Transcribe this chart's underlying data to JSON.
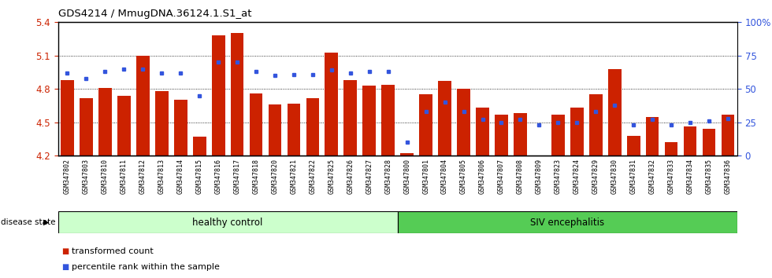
{
  "title": "GDS4214 / MmugDNA.36124.1.S1_at",
  "samples": [
    "GSM347802",
    "GSM347803",
    "GSM347810",
    "GSM347811",
    "GSM347812",
    "GSM347813",
    "GSM347814",
    "GSM347815",
    "GSM347816",
    "GSM347817",
    "GSM347818",
    "GSM347820",
    "GSM347821",
    "GSM347822",
    "GSM347825",
    "GSM347826",
    "GSM347827",
    "GSM347828",
    "GSM347800",
    "GSM347801",
    "GSM347804",
    "GSM347805",
    "GSM347806",
    "GSM347807",
    "GSM347808",
    "GSM347809",
    "GSM347823",
    "GSM347824",
    "GSM347829",
    "GSM347830",
    "GSM347831",
    "GSM347832",
    "GSM347833",
    "GSM347834",
    "GSM347835",
    "GSM347836"
  ],
  "transformed_count": [
    4.88,
    4.72,
    4.81,
    4.74,
    5.1,
    4.78,
    4.7,
    4.37,
    5.28,
    5.3,
    4.76,
    4.66,
    4.67,
    4.72,
    5.13,
    4.88,
    4.83,
    4.84,
    4.22,
    4.75,
    4.87,
    4.8,
    4.63,
    4.57,
    4.58,
    4.2,
    4.57,
    4.63,
    4.75,
    4.98,
    4.38,
    4.55,
    4.32,
    4.46,
    4.44,
    4.57
  ],
  "percentile_rank": [
    62,
    58,
    63,
    65,
    65,
    62,
    62,
    45,
    70,
    70,
    63,
    60,
    61,
    61,
    64,
    62,
    63,
    63,
    10,
    33,
    40,
    33,
    27,
    25,
    27,
    23,
    25,
    25,
    33,
    38,
    23,
    27,
    23,
    25,
    26,
    28
  ],
  "healthy_control_count": 18,
  "ylim": [
    4.2,
    5.4
  ],
  "y_ticks": [
    4.2,
    4.5,
    4.8,
    5.1,
    5.4
  ],
  "right_ylim": [
    0,
    100
  ],
  "right_yticks": [
    0,
    25,
    50,
    75,
    100
  ],
  "right_yticklabels": [
    "0",
    "25",
    "50",
    "75",
    "100%"
  ],
  "bar_color": "#cc2200",
  "dot_color": "#3355dd",
  "healthy_bg": "#ccffcc",
  "siv_bg": "#55cc55",
  "xtick_bg": "#d8d8d8",
  "label_healthy": "healthy control",
  "label_siv": "SIV encephalitis",
  "disease_state_label": "disease state",
  "legend_bar_label": "transformed count",
  "legend_dot_label": "percentile rank within the sample",
  "plot_bg": "#ffffff"
}
